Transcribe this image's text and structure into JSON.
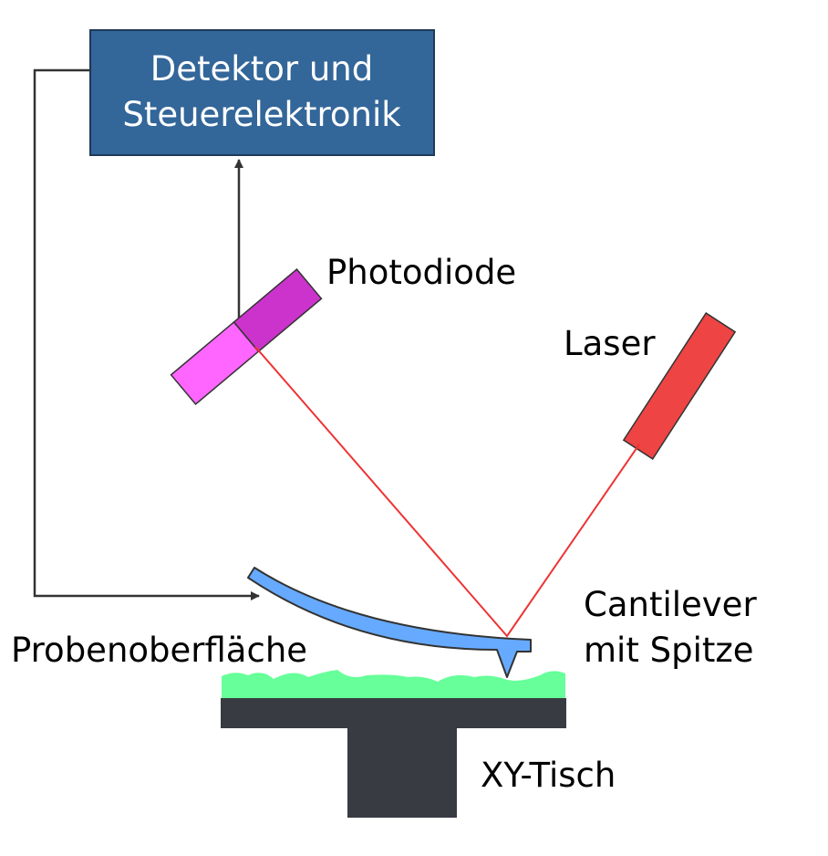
{
  "colors": {
    "box_fill": "#336699",
    "box_stroke": "#1f3a57",
    "line_dark": "#333333",
    "laser_body": "#ee4444",
    "laser_beam": "#ee3333",
    "photodiode_light": "#ff66ff",
    "photodiode_dark": "#cc33cc",
    "cantilever": "#66aaff",
    "sample_surface": "#66ff99",
    "stage": "#383b42"
  },
  "labels": {
    "controller_line1": "Detektor und",
    "controller_line2": "Steuerelektronik",
    "photodiode": "Photodiode",
    "laser": "Laser",
    "cantilever_line1": "Cantilever",
    "cantilever_line2": "mit Spitze",
    "sample_surface": "Probenoberfläche",
    "stage": "XY-Tisch"
  }
}
